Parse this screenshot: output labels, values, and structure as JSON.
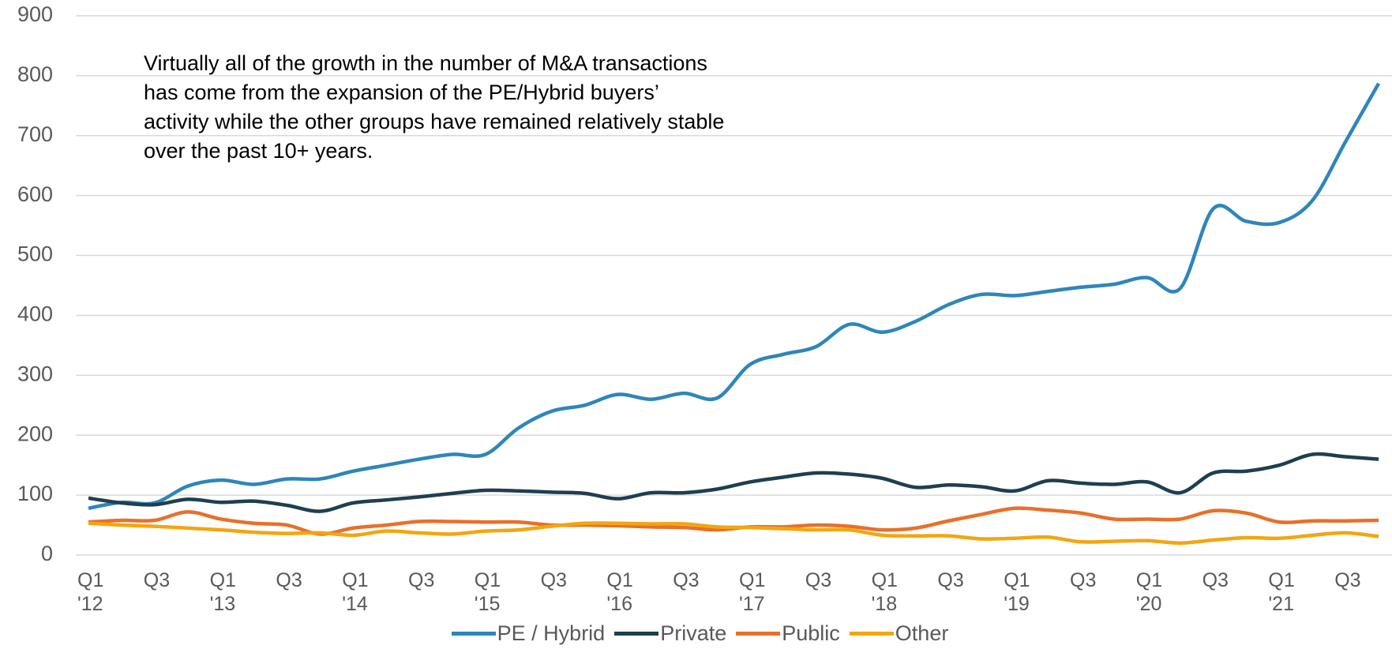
{
  "chart_data": {
    "type": "line",
    "annotation": "Virtually all of the growth in the number of M&A transactions has come from the expansion of the PE/Hybrid buyers’ activity while the other groups have remained relatively stable over the past 10+ years.",
    "categories": [
      "Q1\n'12",
      null,
      "Q3",
      null,
      "Q1\n'13",
      null,
      "Q3",
      null,
      "Q1\n'14",
      null,
      "Q3",
      null,
      "Q1\n'15",
      null,
      "Q3",
      null,
      "Q1\n'16",
      null,
      "Q3",
      null,
      "Q1\n'17",
      null,
      "Q3",
      null,
      "Q1\n'18",
      null,
      "Q3",
      null,
      "Q1\n'19",
      null,
      "Q3",
      null,
      "Q1\n'20",
      null,
      "Q3",
      null,
      "Q1\n'21",
      null,
      "Q3",
      null
    ],
    "series": [
      {
        "name": "PE / Hybrid",
        "color": "#2e86b9",
        "values": [
          78,
          88,
          87,
          115,
          125,
          118,
          127,
          127,
          140,
          150,
          160,
          168,
          168,
          212,
          240,
          250,
          268,
          260,
          270,
          262,
          318,
          335,
          348,
          385,
          372,
          390,
          418,
          435,
          433,
          440,
          447,
          452,
          463,
          445,
          578,
          557,
          555,
          592,
          690,
          787
        ]
      },
      {
        "name": "Private",
        "color": "#1f3f4f",
        "values": [
          95,
          87,
          84,
          93,
          88,
          90,
          83,
          73,
          87,
          92,
          97,
          103,
          108,
          107,
          105,
          103,
          94,
          104,
          104,
          110,
          122,
          130,
          137,
          135,
          128,
          113,
          117,
          114,
          107,
          124,
          120,
          118,
          122,
          104,
          137,
          140,
          150,
          168,
          164,
          160
        ]
      },
      {
        "name": "Public",
        "color": "#e8702a",
        "values": [
          55,
          58,
          58,
          72,
          60,
          53,
          50,
          35,
          45,
          50,
          56,
          56,
          55,
          55,
          50,
          50,
          49,
          47,
          46,
          42,
          47,
          47,
          50,
          48,
          42,
          45,
          57,
          68,
          78,
          75,
          70,
          60,
          60,
          60,
          74,
          70,
          55,
          57,
          57,
          58
        ]
      },
      {
        "name": "Other",
        "color": "#f2a60f",
        "values": [
          53,
          50,
          48,
          45,
          42,
          38,
          36,
          37,
          33,
          40,
          37,
          35,
          40,
          42,
          48,
          53,
          53,
          52,
          52,
          47,
          46,
          44,
          42,
          42,
          33,
          32,
          32,
          27,
          28,
          30,
          22,
          23,
          24,
          20,
          25,
          29,
          28,
          33,
          37,
          31
        ]
      }
    ],
    "ylim": [
      0,
      900
    ],
    "yticks": [
      0,
      100,
      200,
      300,
      400,
      500,
      600,
      700,
      800,
      900
    ],
    "grid": true,
    "legend": "bottom"
  }
}
